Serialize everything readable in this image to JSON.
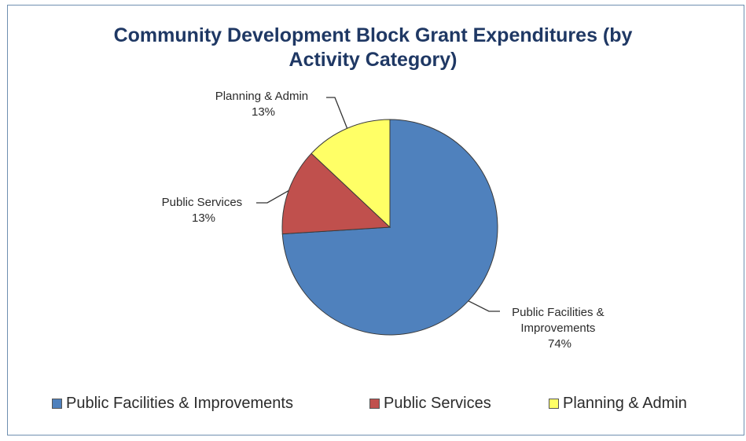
{
  "chart_data": {
    "type": "pie",
    "title_lines": [
      "Community Development Block Grant Expenditures (by",
      "Activity Category)"
    ],
    "categories": [
      "Public Facilities & Improvements",
      "Public Services",
      "Planning & Admin"
    ],
    "values": [
      74,
      13,
      13
    ],
    "value_labels": [
      "74%",
      "13%",
      "13%"
    ],
    "slice_label_lines": [
      [
        "Public Facilities &",
        "Improvements"
      ],
      [
        "Public Services"
      ],
      [
        "Planning & Admin"
      ]
    ],
    "colors": [
      "#4f81bd",
      "#c0504d",
      "#ffff66"
    ],
    "start_angle_deg": 0,
    "direction": "clockwise",
    "legend_position": "bottom"
  },
  "legend": {
    "items": [
      "Public Facilities & Improvements",
      "Public Services",
      "Planning & Admin"
    ]
  }
}
